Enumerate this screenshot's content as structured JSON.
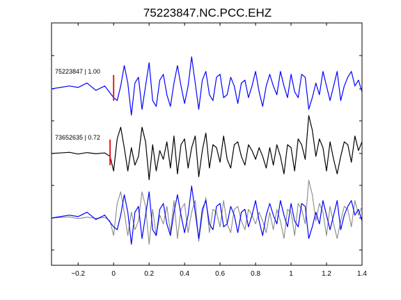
{
  "chart_data": {
    "type": "line",
    "title": "75223847.NC.PCC.EHZ",
    "xlabel": "",
    "ylabel": "",
    "xlim": [
      -0.35,
      1.4
    ],
    "x_ticks": [
      -0.2,
      0,
      0.2,
      0.4,
      0.6,
      0.8,
      1,
      1.2,
      1.4
    ],
    "x_tick_labels": [
      "−0.2",
      "0",
      "0.2",
      "0.4",
      "0.6",
      "0.8",
      "1",
      "1.2",
      "1.4"
    ],
    "grid": false,
    "legend": "none",
    "traces": [
      {
        "label": "75223847 | 1.00",
        "color": "#0000ff",
        "pick_time": 0.0,
        "pick_color": "#e41a1c",
        "x": [
          -0.35,
          -0.3,
          -0.25,
          -0.2,
          -0.15,
          -0.1,
          -0.05,
          0,
          0.02,
          0.04,
          0.06,
          0.08,
          0.1,
          0.12,
          0.14,
          0.16,
          0.18,
          0.2,
          0.22,
          0.24,
          0.26,
          0.28,
          0.3,
          0.32,
          0.34,
          0.36,
          0.38,
          0.4,
          0.42,
          0.44,
          0.46,
          0.48,
          0.5,
          0.52,
          0.54,
          0.56,
          0.58,
          0.6,
          0.62,
          0.64,
          0.66,
          0.68,
          0.7,
          0.72,
          0.74,
          0.76,
          0.78,
          0.8,
          0.82,
          0.84,
          0.86,
          0.88,
          0.9,
          0.92,
          0.94,
          0.96,
          0.98,
          1,
          1.02,
          1.04,
          1.06,
          1.08,
          1.1,
          1.12,
          1.14,
          1.16,
          1.18,
          1.2,
          1.22,
          1.24,
          1.26,
          1.28,
          1.3,
          1.32,
          1.34,
          1.36,
          1.38,
          1.4
        ],
        "y": [
          0,
          0.05,
          0.1,
          0.05,
          0.2,
          -0.05,
          0.1,
          -0.3,
          -0.4,
          0.1,
          0.8,
          0.2,
          -0.9,
          0.2,
          0.4,
          -0.7,
          0.1,
          0.9,
          -0.4,
          -0.6,
          0.3,
          0.5,
          -0.2,
          -0.6,
          0.2,
          0.8,
          0.1,
          -0.5,
          0.1,
          1.1,
          0.2,
          -0.7,
          0.3,
          0.6,
          -0.2,
          -0.4,
          0.4,
          0.5,
          -0.3,
          -0.2,
          0.4,
          0.1,
          -0.5,
          0.2,
          0.3,
          -0.3,
          0.1,
          0.6,
          -0.1,
          -0.6,
          0.1,
          0.5,
          0.1,
          -0.2,
          0.6,
          0.1,
          -0.3,
          0.5,
          -0.1,
          -0.3,
          0.5,
          0.4,
          -0.7,
          -0.3,
          0.2,
          -0.2,
          0.6,
          0.1,
          -0.4,
          0.1,
          0.6,
          -0.4,
          0.1,
          0.4,
          0.6,
          0.1,
          0.3,
          -0.1
        ]
      },
      {
        "label": "73652635 | 0.72",
        "color": "#000000",
        "pick_time": -0.02,
        "pick_color": "#e41a1c",
        "x": [
          -0.35,
          -0.3,
          -0.25,
          -0.2,
          -0.15,
          -0.1,
          -0.05,
          -0.02,
          0,
          0.02,
          0.04,
          0.06,
          0.08,
          0.1,
          0.12,
          0.14,
          0.16,
          0.18,
          0.2,
          0.22,
          0.24,
          0.26,
          0.28,
          0.3,
          0.32,
          0.34,
          0.36,
          0.38,
          0.4,
          0.42,
          0.44,
          0.46,
          0.48,
          0.5,
          0.52,
          0.54,
          0.56,
          0.58,
          0.6,
          0.62,
          0.64,
          0.66,
          0.68,
          0.7,
          0.72,
          0.74,
          0.76,
          0.78,
          0.8,
          0.82,
          0.84,
          0.86,
          0.88,
          0.9,
          0.92,
          0.94,
          0.96,
          0.98,
          1,
          1.02,
          1.04,
          1.06,
          1.08,
          1.1,
          1.12,
          1.14,
          1.16,
          1.18,
          1.2,
          1.22,
          1.24,
          1.26,
          1.28,
          1.3,
          1.32,
          1.34,
          1.36,
          1.38,
          1.4
        ],
        "y": [
          0,
          0.02,
          0.04,
          -0.02,
          0.03,
          -0.01,
          0.02,
          -0.1,
          -0.6,
          0.5,
          0.9,
          0.2,
          -0.6,
          0.2,
          -0.4,
          -0.1,
          0.9,
          0.4,
          -0.9,
          0.3,
          -0.6,
          0.1,
          -0.2,
          0.4,
          -0.5,
          0.6,
          -0.7,
          0.3,
          0.5,
          -0.5,
          0.2,
          0.6,
          -0.8,
          0.1,
          0.7,
          -0.5,
          0.3,
          0.2,
          -0.3,
          0.6,
          -0.2,
          -0.5,
          0.3,
          0.4,
          -0.1,
          -0.4,
          0.3,
          0.1,
          -0.2,
          0.2,
          -0.1,
          -0.5,
          0.2,
          -0.4,
          0.3,
          -0.1,
          -0.7,
          0.3,
          0.2,
          -0.6,
          0.5,
          0.3,
          -0.2,
          1.3,
          0.8,
          -0.1,
          0.5,
          0.2,
          -0.6,
          0.4,
          -0.2,
          -0.7,
          -0.1,
          0.4,
          0.3,
          -0.3,
          0.6,
          0.1,
          0.4
        ]
      },
      {
        "label": "",
        "color": "#0000ff",
        "overlay_color": "#888888",
        "x": [
          -0.35,
          -0.3,
          -0.25,
          -0.2,
          -0.15,
          -0.1,
          -0.05,
          0,
          0.02,
          0.04,
          0.06,
          0.08,
          0.1,
          0.12,
          0.14,
          0.16,
          0.18,
          0.2,
          0.22,
          0.24,
          0.26,
          0.28,
          0.3,
          0.32,
          0.34,
          0.36,
          0.38,
          0.4,
          0.42,
          0.44,
          0.46,
          0.48,
          0.5,
          0.52,
          0.54,
          0.56,
          0.58,
          0.6,
          0.62,
          0.64,
          0.66,
          0.68,
          0.7,
          0.72,
          0.74,
          0.76,
          0.78,
          0.8,
          0.82,
          0.84,
          0.86,
          0.88,
          0.9,
          0.92,
          0.94,
          0.96,
          0.98,
          1,
          1.02,
          1.04,
          1.06,
          1.08,
          1.1,
          1.12,
          1.14,
          1.16,
          1.18,
          1.2,
          1.22,
          1.24,
          1.26,
          1.28,
          1.3,
          1.32,
          1.34,
          1.36,
          1.38,
          1.4
        ],
        "y": [
          0,
          0.05,
          0.1,
          0.05,
          0.2,
          -0.05,
          0.1,
          -0.3,
          -0.4,
          0.1,
          0.8,
          0.2,
          -0.9,
          0.2,
          0.4,
          -0.7,
          0.1,
          0.9,
          -0.4,
          -0.6,
          0.3,
          0.5,
          -0.2,
          -0.6,
          0.2,
          0.8,
          0.1,
          -0.5,
          0.1,
          1.1,
          0.2,
          -0.7,
          0.3,
          0.6,
          -0.2,
          -0.4,
          0.4,
          0.5,
          -0.3,
          -0.2,
          0.4,
          0.1,
          -0.5,
          0.2,
          0.3,
          -0.3,
          0.1,
          0.6,
          -0.1,
          -0.6,
          0.1,
          0.5,
          0.1,
          -0.2,
          0.6,
          0.1,
          -0.3,
          0.5,
          -0.1,
          -0.3,
          0.5,
          0.4,
          -0.7,
          -0.3,
          0.2,
          -0.2,
          0.6,
          0.1,
          -0.4,
          0.1,
          0.6,
          -0.4,
          0.1,
          0.4,
          0.6,
          0.1,
          0.3,
          -0.1
        ],
        "overlay_x": [
          -0.35,
          -0.3,
          -0.25,
          -0.2,
          -0.15,
          -0.1,
          -0.05,
          -0.02,
          0,
          0.02,
          0.04,
          0.06,
          0.08,
          0.1,
          0.12,
          0.14,
          0.16,
          0.18,
          0.2,
          0.22,
          0.24,
          0.26,
          0.28,
          0.3,
          0.32,
          0.34,
          0.36,
          0.38,
          0.4,
          0.42,
          0.44,
          0.46,
          0.48,
          0.5,
          0.52,
          0.54,
          0.56,
          0.58,
          0.6,
          0.62,
          0.64,
          0.66,
          0.68,
          0.7,
          0.72,
          0.74,
          0.76,
          0.78,
          0.8,
          0.82,
          0.84,
          0.86,
          0.88,
          0.9,
          0.92,
          0.94,
          0.96,
          0.98,
          1,
          1.02,
          1.04,
          1.06,
          1.08,
          1.1,
          1.12,
          1.14,
          1.16,
          1.18,
          1.2,
          1.22,
          1.24,
          1.26,
          1.28,
          1.3,
          1.32,
          1.34,
          1.36,
          1.38,
          1.4
        ],
        "overlay_y": [
          0,
          0.02,
          0.04,
          -0.02,
          0.03,
          -0.01,
          0.02,
          -0.1,
          -0.6,
          0.5,
          0.9,
          0.2,
          -0.6,
          0.2,
          -0.4,
          -0.1,
          0.9,
          0.4,
          -0.9,
          0.3,
          -0.6,
          0.1,
          -0.2,
          0.4,
          -0.5,
          0.6,
          -0.7,
          0.3,
          0.5,
          -0.5,
          0.2,
          0.6,
          -0.8,
          0.1,
          0.7,
          -0.5,
          0.3,
          0.2,
          -0.3,
          0.6,
          -0.2,
          -0.5,
          0.3,
          0.4,
          -0.1,
          -0.4,
          0.3,
          0.1,
          -0.2,
          0.2,
          -0.1,
          -0.5,
          0.2,
          -0.4,
          0.3,
          -0.1,
          -0.7,
          0.3,
          0.2,
          -0.6,
          0.5,
          0.3,
          -0.2,
          1.3,
          0.8,
          -0.1,
          0.5,
          0.2,
          -0.6,
          0.4,
          -0.2,
          -0.7,
          -0.1,
          0.4,
          0.3,
          -0.3,
          0.6,
          0.1,
          0.4
        ]
      }
    ]
  }
}
